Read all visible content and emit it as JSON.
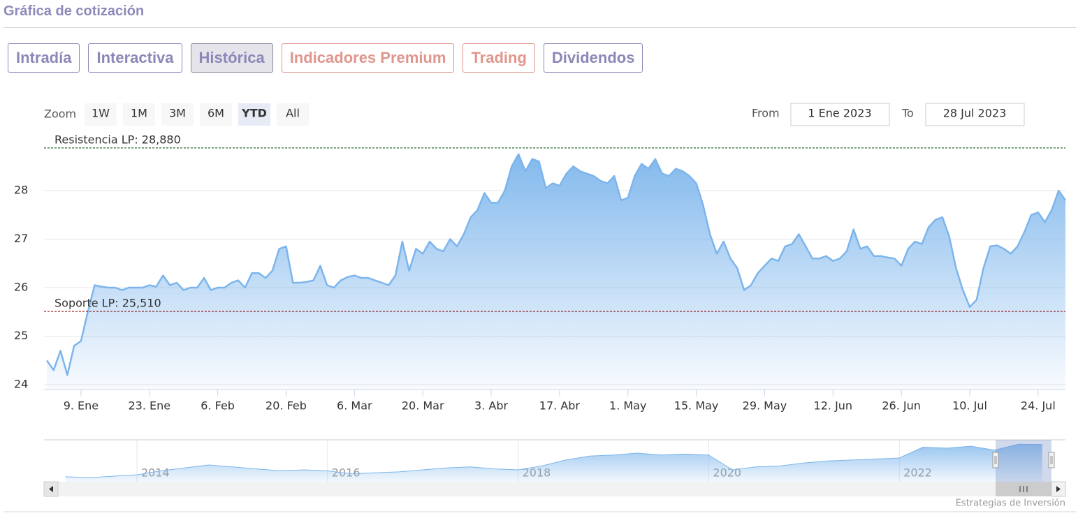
{
  "header": {
    "title": "Gráfica de cotización"
  },
  "tabs": [
    {
      "label": "Intradía",
      "color": "#8b88b8"
    },
    {
      "label": "Interactiva",
      "color": "#8b88b8"
    },
    {
      "label": "Histórica",
      "color": "#8b88b8"
    },
    {
      "label": "Indicadores Premium",
      "color": "#e0968d"
    },
    {
      "label": "Trading",
      "color": "#e0968d"
    },
    {
      "label": "Dividendos",
      "color": "#8b88b8"
    }
  ],
  "active_tab": 2,
  "range_selector": {
    "zoom_label": "Zoom",
    "buttons": [
      "1W",
      "1M",
      "3M",
      "6M",
      "YTD",
      "All"
    ],
    "active": 4,
    "from_label": "From",
    "from_value": "1 Ene 2023",
    "to_label": "To",
    "to_value": "28 Jul 2023"
  },
  "credit": "Estrategias de Inversión",
  "chart_data": [
    {
      "type": "area",
      "color": "#7cb5ec",
      "grid": true,
      "categories": [
        null,
        null,
        null,
        null,
        null,
        "9. Ene",
        null,
        null,
        null,
        null,
        null,
        null,
        null,
        null,
        null,
        "23. Ene",
        null,
        null,
        null,
        null,
        null,
        null,
        null,
        null,
        null,
        "6. Feb",
        null,
        null,
        null,
        null,
        null,
        null,
        null,
        null,
        null,
        "20. Feb",
        null,
        null,
        null,
        null,
        null,
        null,
        null,
        null,
        null,
        "6. Mar",
        null,
        null,
        null,
        null,
        null,
        null,
        null,
        null,
        null,
        "20. Mar",
        null,
        null,
        null,
        null,
        null,
        null,
        null,
        null,
        null,
        "3. Abr",
        null,
        null,
        null,
        null,
        null,
        null,
        null,
        null,
        null,
        "17. Abr",
        null,
        null,
        null,
        null,
        null,
        null,
        null,
        null,
        null,
        "1. May",
        null,
        null,
        null,
        null,
        null,
        null,
        null,
        null,
        null,
        "15. May",
        null,
        null,
        null,
        null,
        null,
        null,
        null,
        null,
        null,
        "29. May",
        null,
        null,
        null,
        null,
        null,
        null,
        null,
        null,
        null,
        "12. Jun",
        null,
        null,
        null,
        null,
        null,
        null,
        null,
        null,
        null,
        "26. Jun",
        null,
        null,
        null,
        null,
        null,
        null,
        null,
        null,
        null,
        "10. Jul",
        null,
        null,
        null,
        null,
        null,
        null,
        null,
        null,
        null,
        "24. Jul",
        null,
        null,
        null,
        null
      ],
      "values": [
        24.5,
        24.3,
        24.7,
        24.2,
        24.8,
        24.9,
        25.5,
        26.05,
        26.02,
        26.0,
        26.0,
        25.95,
        26.0,
        26.0,
        26.0,
        26.05,
        26.02,
        26.25,
        26.05,
        26.1,
        25.95,
        26.0,
        26.0,
        26.2,
        25.95,
        26.0,
        26.0,
        26.1,
        26.15,
        26.0,
        26.3,
        26.3,
        26.2,
        26.35,
        26.8,
        26.85,
        26.1,
        26.1,
        26.12,
        26.15,
        26.45,
        26.05,
        26.0,
        26.15,
        26.22,
        26.25,
        26.2,
        26.2,
        26.15,
        26.1,
        26.05,
        26.25,
        26.95,
        26.35,
        26.8,
        26.7,
        26.95,
        26.8,
        26.75,
        27.0,
        26.85,
        27.1,
        27.45,
        27.6,
        27.95,
        27.75,
        27.75,
        28.0,
        28.5,
        28.75,
        28.4,
        28.65,
        28.6,
        28.05,
        28.15,
        28.1,
        28.35,
        28.5,
        28.4,
        28.35,
        28.3,
        28.2,
        28.15,
        28.3,
        27.8,
        27.85,
        28.3,
        28.55,
        28.45,
        28.65,
        28.35,
        28.3,
        28.45,
        28.4,
        28.3,
        28.15,
        27.7,
        27.1,
        26.7,
        26.95,
        26.6,
        26.4,
        25.95,
        26.05,
        26.3,
        26.45,
        26.6,
        26.55,
        26.85,
        26.9,
        27.1,
        26.85,
        26.6,
        26.6,
        26.65,
        26.55,
        26.6,
        26.75,
        27.2,
        26.8,
        26.85,
        26.65,
        26.65,
        26.62,
        26.6,
        26.45,
        26.8,
        26.95,
        26.9,
        27.25,
        27.4,
        27.45,
        27.05,
        26.4,
        25.95,
        25.6,
        25.75,
        26.4,
        26.85,
        26.87,
        26.8,
        26.7,
        26.85,
        27.15,
        27.5,
        27.55,
        27.35,
        27.6,
        28.0,
        27.8
      ],
      "ylim": [
        23.9,
        29.2
      ],
      "yticks": [
        24,
        25,
        26,
        27,
        28
      ],
      "plot_lines": [
        {
          "value": 28.88,
          "label": "Resistencia LP: 28,880",
          "color": "#2e6b30"
        },
        {
          "value": 25.51,
          "label": "Soporte LP: 25,510",
          "color": "#8b1a1a"
        }
      ]
    },
    {
      "type": "area",
      "color": "#7cb5ec",
      "categories": [
        null,
        null,
        null,
        "2014",
        null,
        null,
        null,
        null,
        null,
        null,
        null,
        "2016",
        null,
        null,
        null,
        null,
        null,
        null,
        null,
        "2018",
        null,
        null,
        null,
        null,
        null,
        null,
        null,
        "2020",
        null,
        null,
        null,
        null,
        null,
        null,
        null,
        "2022",
        null,
        null,
        null,
        null,
        null,
        null
      ],
      "values": [
        11.5,
        11.0,
        11.8,
        12.5,
        14.5,
        16.0,
        17.5,
        16.5,
        15.5,
        14.5,
        15.0,
        14.5,
        13.0,
        13.5,
        14.0,
        15.0,
        16.0,
        16.5,
        15.5,
        15.0,
        17.0,
        20.0,
        22.0,
        22.5,
        23.5,
        22.5,
        23.0,
        22.5,
        15.0,
        16.5,
        17.0,
        18.5,
        19.5,
        20.0,
        20.5,
        21.0,
        26.5,
        26.0,
        27.0,
        25.0,
        28.0,
        27.8
      ],
      "ylim": [
        9,
        29.5
      ]
    }
  ]
}
